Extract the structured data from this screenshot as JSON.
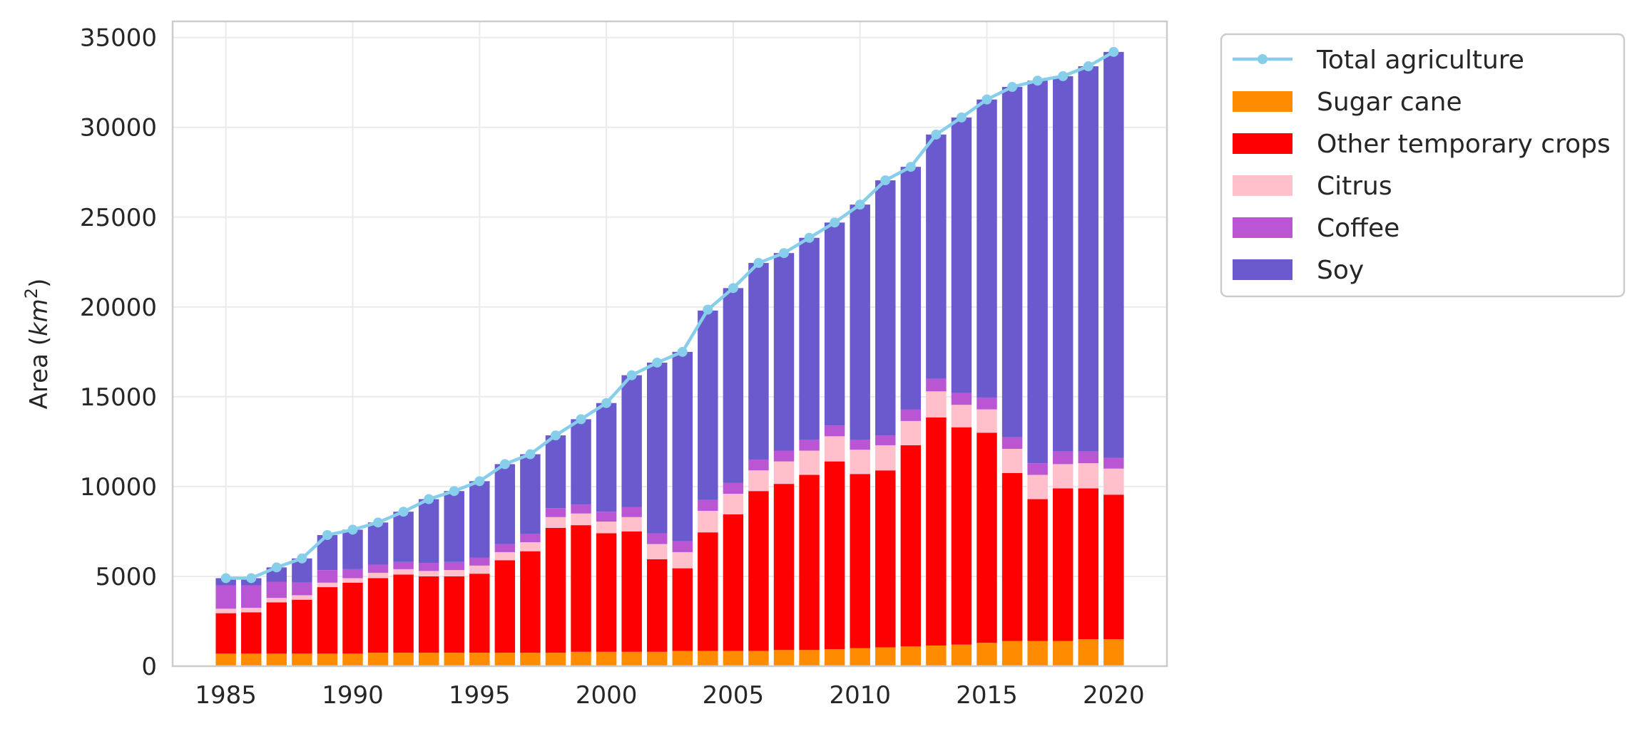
{
  "chart_data": {
    "type": "bar",
    "stacked": true,
    "title": "",
    "xlabel": "",
    "ylabel": "Area (km²)",
    "ylabel_parts": {
      "prefix": "Area (",
      "unit": "km",
      "exponent": "2",
      "suffix": ")"
    },
    "xlim": [
      1982.9,
      2022.1
    ],
    "ylim": [
      0,
      35900
    ],
    "xticks": [
      "1985",
      "1990",
      "1995",
      "2000",
      "2005",
      "2010",
      "2015",
      "2020"
    ],
    "yticks": [
      "0",
      "5000",
      "10000",
      "15000",
      "20000",
      "25000",
      "30000",
      "35000"
    ],
    "grid": true,
    "legend_position": "outside-top-right",
    "years": [
      1985,
      1986,
      1987,
      1988,
      1989,
      1990,
      1991,
      1992,
      1993,
      1994,
      1995,
      1996,
      1997,
      1998,
      1999,
      2000,
      2001,
      2002,
      2003,
      2004,
      2005,
      2006,
      2007,
      2008,
      2009,
      2010,
      2011,
      2012,
      2013,
      2014,
      2015,
      2016,
      2017,
      2018,
      2019,
      2020
    ],
    "series": [
      {
        "name": "Sugar cane",
        "color": "#ff8c00",
        "values": [
          700,
          700,
          700,
          700,
          700,
          700,
          750,
          750,
          750,
          750,
          750,
          750,
          750,
          750,
          800,
          800,
          800,
          800,
          850,
          850,
          850,
          850,
          900,
          900,
          950,
          1000,
          1050,
          1100,
          1150,
          1200,
          1300,
          1400,
          1400,
          1400,
          1500,
          1500
        ]
      },
      {
        "name": "Other temporary crops",
        "color": "#ff0000",
        "values": [
          2250,
          2300,
          2850,
          3000,
          3700,
          3950,
          4150,
          4350,
          4250,
          4250,
          4400,
          5150,
          5650,
          6950,
          7050,
          6600,
          6700,
          5150,
          4600,
          6600,
          7600,
          8900,
          9250,
          9750,
          10450,
          9700,
          9850,
          11200,
          12700,
          12100,
          11700,
          9350,
          7900,
          8500,
          8400,
          8050
        ]
      },
      {
        "name": "Citrus",
        "color": "#ffc0cb",
        "values": [
          250,
          250,
          250,
          250,
          250,
          250,
          300,
          300,
          300,
          350,
          450,
          450,
          500,
          600,
          650,
          650,
          800,
          850,
          900,
          1200,
          1150,
          1150,
          1250,
          1350,
          1400,
          1350,
          1400,
          1350,
          1450,
          1250,
          1300,
          1350,
          1350,
          1350,
          1400,
          1450
        ]
      },
      {
        "name": "Coffee",
        "color": "#ba55d3",
        "values": [
          1300,
          1250,
          900,
          700,
          700,
          500,
          450,
          400,
          450,
          450,
          450,
          450,
          450,
          500,
          500,
          550,
          550,
          600,
          600,
          600,
          600,
          600,
          600,
          600,
          600,
          550,
          550,
          650,
          700,
          650,
          650,
          650,
          650,
          700,
          650,
          600
        ]
      },
      {
        "name": "Soy",
        "color": "#6a5acd",
        "values": [
          400,
          400,
          800,
          1350,
          1950,
          2200,
          2350,
          2800,
          3550,
          3950,
          4250,
          4450,
          4450,
          4050,
          4750,
          6050,
          7350,
          9500,
          10550,
          10550,
          10850,
          10950,
          11000,
          11250,
          11300,
          13100,
          14200,
          13500,
          13600,
          15350,
          16600,
          19500,
          21300,
          20900,
          21450,
          22600
        ]
      }
    ],
    "line": {
      "name": "Total agriculture",
      "color": "#87ceeb",
      "values": [
        4900,
        4900,
        5500,
        6000,
        7300,
        7600,
        8000,
        8600,
        9300,
        9750,
        10300,
        11250,
        11800,
        12850,
        13750,
        14650,
        16200,
        16900,
        17500,
        19850,
        21050,
        22450,
        23000,
        23850,
        24700,
        25700,
        27050,
        27800,
        29600,
        30550,
        31550,
        32250,
        32600,
        32850,
        33400,
        34200
      ]
    }
  }
}
